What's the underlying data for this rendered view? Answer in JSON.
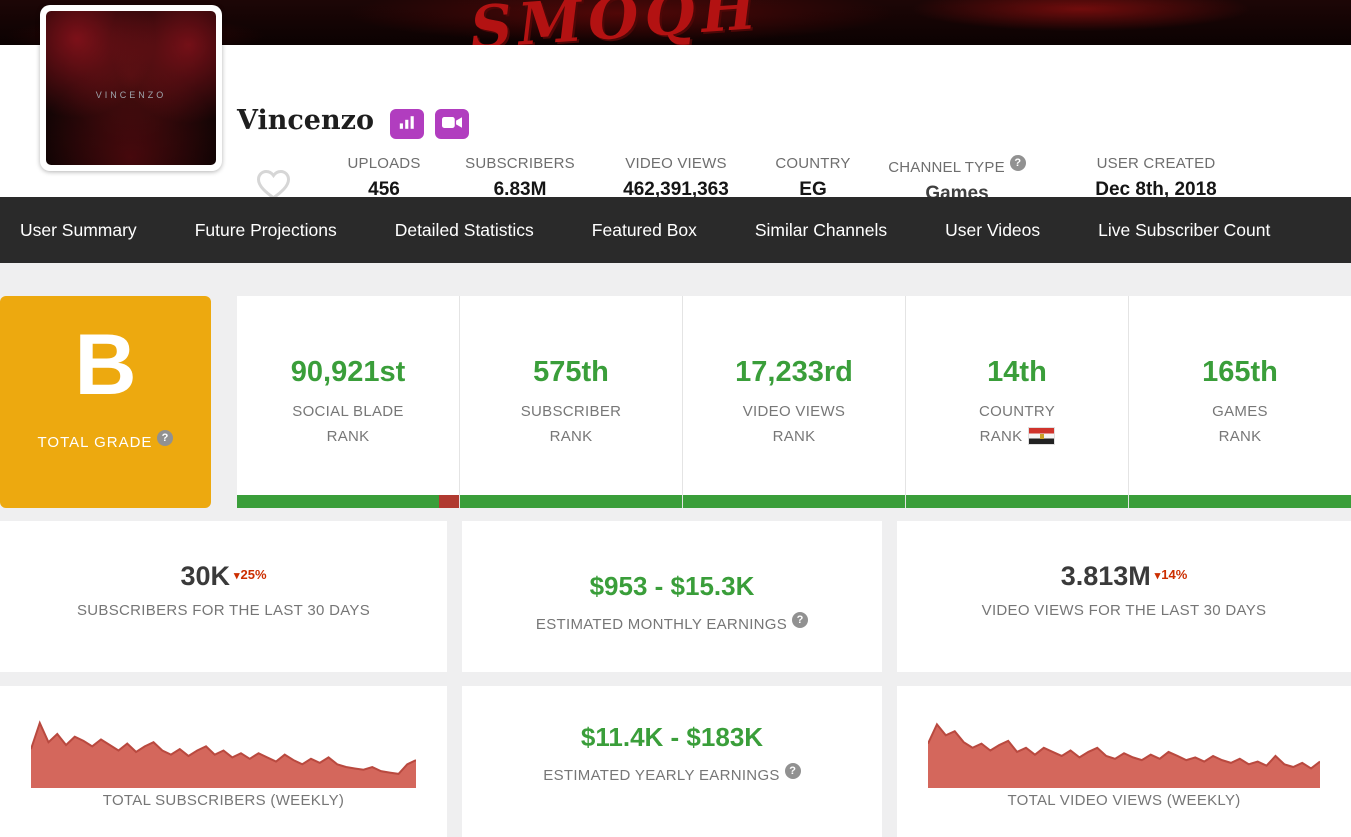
{
  "colors": {
    "accent_green": "#3a9e3a",
    "grade_orange": "#eda90f",
    "chart_fill": "#d4675c",
    "chart_line": "#b9493f",
    "change_red": "#cc2e00",
    "nav_bg": "#2a2a2a",
    "button_purple": "#b13dbf"
  },
  "banner": {
    "text": "SMOQH"
  },
  "profile": {
    "name": "Vincenzo",
    "avatar_text": "VINCENZO",
    "stats": [
      {
        "label": "UPLOADS",
        "value": "456"
      },
      {
        "label": "SUBSCRIBERS",
        "value": "6.83M"
      },
      {
        "label": "VIDEO VIEWS",
        "value": "462,391,363"
      },
      {
        "label": "COUNTRY",
        "value": "EG"
      },
      {
        "label": "CHANNEL TYPE",
        "value": "Games"
      },
      {
        "label": "USER CREATED",
        "value": "Dec 8th, 2018"
      }
    ]
  },
  "nav": {
    "items": [
      "User Summary",
      "Future Projections",
      "Detailed Statistics",
      "Featured Box",
      "Similar Channels",
      "User Videos",
      "Live Subscriber Count"
    ]
  },
  "grade": {
    "letter": "B",
    "label": "TOTAL GRADE"
  },
  "ranks": [
    {
      "value": "90,921st",
      "line1": "SOCIAL BLADE",
      "line2": "RANK"
    },
    {
      "value": "575th",
      "line1": "SUBSCRIBER",
      "line2": "RANK"
    },
    {
      "value": "17,233rd",
      "line1": "VIDEO VIEWS",
      "line2": "RANK"
    },
    {
      "value": "14th",
      "line1": "COUNTRY",
      "line2": "RANK"
    },
    {
      "value": "165th",
      "line1": "GAMES",
      "line2": "RANK"
    }
  ],
  "metrics": {
    "subs30": {
      "value": "30K",
      "change": "25%",
      "label": "SUBSCRIBERS FOR THE LAST 30 DAYS"
    },
    "monthly": {
      "value": "$953  -  $15.3K",
      "label": "ESTIMATED MONTHLY EARNINGS"
    },
    "views30": {
      "value": "3.813M",
      "change": "14%",
      "label": "VIDEO VIEWS FOR THE LAST 30 DAYS"
    },
    "yearly": {
      "value": "$11.4K  -  $183K",
      "label": "ESTIMATED YEARLY EARNINGS"
    }
  },
  "charts": {
    "subscribers_weekly": {
      "label": "TOTAL SUBSCRIBERS (WEEKLY)",
      "points": [
        52,
        90,
        62,
        74,
        58,
        70,
        64,
        56,
        66,
        58,
        50,
        60,
        48,
        56,
        62,
        50,
        44,
        52,
        42,
        50,
        56,
        44,
        50,
        40,
        46,
        38,
        46,
        40,
        34,
        44,
        36,
        30,
        38,
        32,
        40,
        30,
        26,
        24,
        22,
        26,
        20,
        18,
        16,
        30,
        36
      ]
    },
    "video_views_weekly": {
      "label": "TOTAL VIDEO VIEWS (WEEKLY)",
      "points": [
        60,
        88,
        72,
        78,
        62,
        54,
        60,
        50,
        58,
        64,
        48,
        54,
        44,
        54,
        48,
        42,
        50,
        40,
        48,
        54,
        42,
        38,
        46,
        40,
        36,
        44,
        38,
        48,
        42,
        36,
        40,
        34,
        42,
        36,
        32,
        38,
        30,
        34,
        28,
        42,
        30,
        26,
        32,
        24,
        34
      ]
    }
  }
}
